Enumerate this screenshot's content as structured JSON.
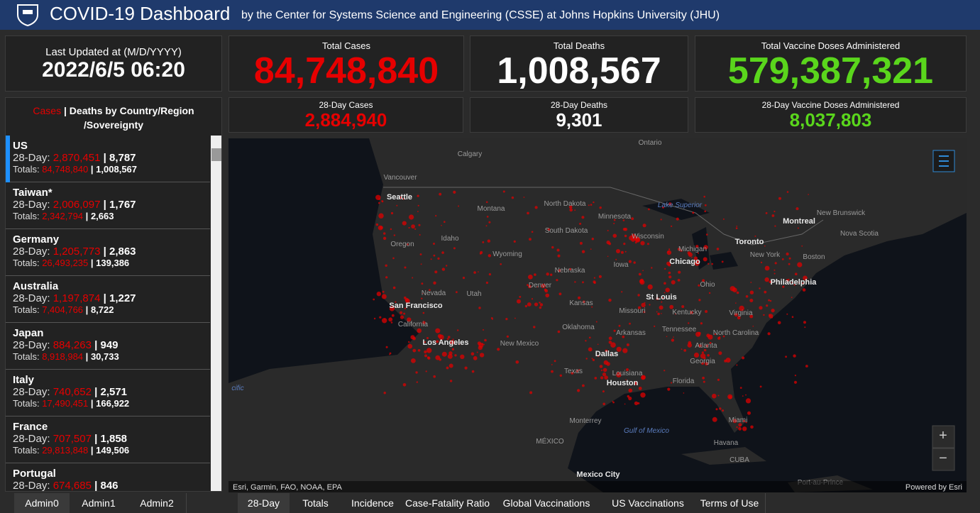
{
  "header": {
    "title": "COVID-19 Dashboard",
    "subtitle": "by the Center for Systems Science and Engineering (CSSE) at Johns Hopkins University (JHU)"
  },
  "last_updated": {
    "label": "Last Updated at (M/D/YYYY)",
    "value": "2022/6/5 06:20"
  },
  "totals": [
    {
      "label": "Total Cases",
      "value": "84,748,840"
    },
    {
      "label": "Total Deaths",
      "value": "1,008,567"
    },
    {
      "label": "Total Vaccine Doses Administered",
      "value": "579,387,321"
    }
  ],
  "totals_28day": [
    {
      "label": "28-Day Cases",
      "value": "2,884,940"
    },
    {
      "label": "28-Day Deaths",
      "value": "9,301"
    },
    {
      "label": "28-Day Vaccine Doses Administered",
      "value": "8,037,803"
    }
  ],
  "country_list": {
    "title_cases": "Cases",
    "title_rest": "| Deaths by Country/Region /Sovereignty",
    "label_28day": "28-Day:",
    "label_totals": "Totals:",
    "separator": "|",
    "rows": [
      {
        "name": "US",
        "day28_cases": "2,870,451",
        "day28_deaths": "8,787",
        "total_cases": "84,748,840",
        "total_deaths": "1,008,567"
      },
      {
        "name": "Taiwan*",
        "day28_cases": "2,006,097",
        "day28_deaths": "1,767",
        "total_cases": "2,342,794",
        "total_deaths": "2,663"
      },
      {
        "name": "Germany",
        "day28_cases": "1,205,773",
        "day28_deaths": "2,863",
        "total_cases": "26,493,235",
        "total_deaths": "139,386"
      },
      {
        "name": "Australia",
        "day28_cases": "1,197,874",
        "day28_deaths": "1,227",
        "total_cases": "7,404,766",
        "total_deaths": "8,722"
      },
      {
        "name": "Japan",
        "day28_cases": "884,263",
        "day28_deaths": "949",
        "total_cases": "8,918,984",
        "total_deaths": "30,733"
      },
      {
        "name": "Italy",
        "day28_cases": "740,652",
        "day28_deaths": "2,571",
        "total_cases": "17,490,451",
        "total_deaths": "166,922"
      },
      {
        "name": "France",
        "day28_cases": "707,507",
        "day28_deaths": "1,858",
        "total_cases": "29,813,848",
        "total_deaths": "149,506"
      },
      {
        "name": "Portugal",
        "day28_cases": "674,685",
        "day28_deaths": "846"
      }
    ]
  },
  "map": {
    "labels": [
      "Ontario",
      "Calgary",
      "Vancouver",
      "Seattle",
      "Montana",
      "North Dakota",
      "Minnesota",
      "Lake Superior",
      "Montreal",
      "New Brunswick",
      "Nova Scotia",
      "Oregon",
      "Idaho",
      "South Dakota",
      "Wisconsin",
      "Toronto",
      "Wyoming",
      "Michigan",
      "New York",
      "Boston",
      "Iowa",
      "Nebraska",
      "Chicago",
      "Ohio",
      "Philadelphia",
      "Denver",
      "Utah",
      "Nevada",
      "San Francisco",
      "Kansas",
      "Missouri",
      "St Louis",
      "Kentucky",
      "Virginia",
      "California",
      "Oklahoma",
      "Arkansas",
      "Tennessee",
      "North Carolina",
      "Los Angeles",
      "New Mexico",
      "Dallas",
      "Atlanta",
      "Georgia",
      "Texas",
      "Louisiana",
      "Houston",
      "Florida",
      "cific",
      "Monterrey",
      "Gulf of Mexico",
      "MÉXICO",
      "Miami",
      "Havana",
      "CUBA",
      "Mexico City",
      "Port-au-Prince"
    ],
    "attribution": "Esri, Garmin, FAO, NOAA, EPA",
    "powered_by": "Powered by Esri",
    "zoom_in": "+",
    "zoom_out": "−"
  },
  "tabs_left": [
    "Admin0",
    "Admin1",
    "Admin2"
  ],
  "tabs_right": [
    "28-Day",
    "Totals",
    "Incidence",
    "Case-Fatality Ratio",
    "Global Vaccinations",
    "US Vaccinations",
    "Terms of Use"
  ]
}
